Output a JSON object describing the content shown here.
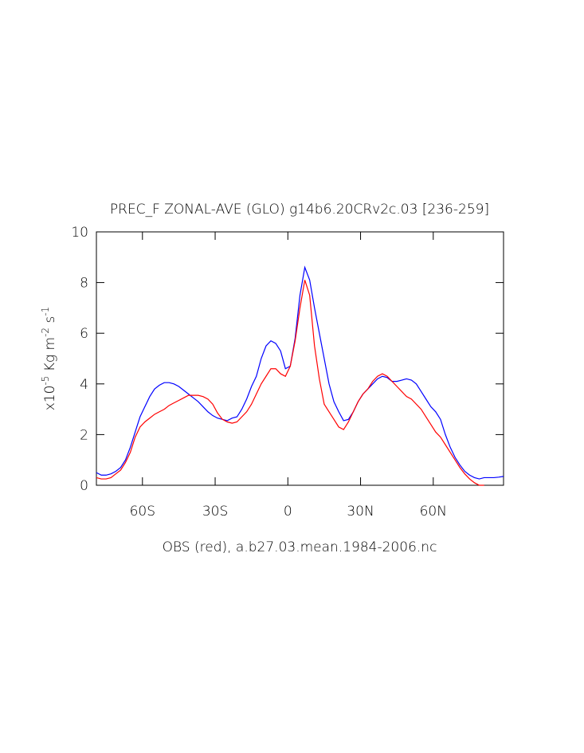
{
  "chart_data": {
    "type": "line",
    "title": "PREC_F ZONAL-AVE (GLO) g14b6.20CRv2c.03 [236-259]",
    "xlabel": "OBS (red), a.b27.03.mean.1984-2006.nc",
    "ylabel": [
      {
        "text": "x10"
      },
      {
        "text": "-5",
        "sup": true
      },
      {
        "text": " Kg m"
      },
      {
        "text": "-2",
        "sup": true
      },
      {
        "text": " s"
      },
      {
        "text": "-1",
        "sup": true
      }
    ],
    "xlim": [
      -79,
      89
    ],
    "ylim": [
      0,
      10
    ],
    "xticks": [
      {
        "value": -60,
        "label": "60S"
      },
      {
        "value": -30,
        "label": "30S"
      },
      0,
      {
        "value": 30,
        "label": "30N"
      },
      {
        "value": 60,
        "label": "60N"
      }
    ],
    "yticks": [
      0,
      2,
      4,
      6,
      8,
      10
    ],
    "x": [
      -79,
      -77,
      -75,
      -73,
      -71,
      -69,
      -67,
      -65,
      -63,
      -61,
      -59,
      -57,
      -55,
      -53,
      -51,
      -49,
      -47,
      -45,
      -43,
      -41,
      -39,
      -37,
      -35,
      -33,
      -31,
      -29,
      -27,
      -25,
      -23,
      -21,
      -19,
      -17,
      -15,
      -13,
      -11,
      -9,
      -7,
      -5,
      -3,
      -1,
      1,
      3,
      5,
      7,
      9,
      11,
      13,
      15,
      17,
      19,
      21,
      23,
      25,
      27,
      29,
      31,
      33,
      35,
      37,
      39,
      41,
      43,
      45,
      47,
      49,
      51,
      53,
      55,
      57,
      59,
      61,
      63,
      65,
      67,
      69,
      71,
      73,
      75,
      77,
      79,
      81,
      83,
      85,
      87,
      89
    ],
    "series": [
      {
        "color": "#0000ff",
        "values": [
          0.5,
          0.4,
          0.4,
          0.45,
          0.55,
          0.7,
          1.0,
          1.5,
          2.1,
          2.7,
          3.1,
          3.5,
          3.8,
          3.95,
          4.05,
          4.05,
          4.0,
          3.9,
          3.75,
          3.6,
          3.45,
          3.3,
          3.1,
          2.9,
          2.75,
          2.65,
          2.6,
          2.55,
          2.65,
          2.7,
          3.0,
          3.4,
          3.9,
          4.3,
          5.0,
          5.5,
          5.7,
          5.6,
          5.3,
          4.6,
          4.7,
          5.8,
          7.5,
          8.6,
          8.1,
          7.0,
          6.0,
          5.0,
          4.0,
          3.3,
          2.9,
          2.55,
          2.6,
          2.9,
          3.3,
          3.6,
          3.8,
          4.0,
          4.2,
          4.3,
          4.25,
          4.1,
          4.1,
          4.15,
          4.2,
          4.15,
          4.0,
          3.7,
          3.4,
          3.1,
          2.9,
          2.6,
          2.0,
          1.5,
          1.1,
          0.8,
          0.55,
          0.4,
          0.3,
          0.25,
          0.3,
          0.3,
          0.3,
          0.32,
          0.35
        ]
      },
      {
        "color": "#ff0000",
        "values": [
          0.3,
          0.25,
          0.25,
          0.3,
          0.45,
          0.6,
          0.9,
          1.3,
          1.9,
          2.3,
          2.5,
          2.65,
          2.8,
          2.9,
          3.0,
          3.15,
          3.25,
          3.35,
          3.45,
          3.55,
          3.55,
          3.55,
          3.5,
          3.4,
          3.2,
          2.85,
          2.6,
          2.5,
          2.45,
          2.5,
          2.7,
          2.9,
          3.2,
          3.6,
          4.0,
          4.3,
          4.6,
          4.6,
          4.4,
          4.3,
          4.7,
          5.7,
          7.0,
          8.1,
          7.5,
          5.5,
          4.2,
          3.2,
          2.9,
          2.6,
          2.3,
          2.2,
          2.5,
          2.9,
          3.3,
          3.6,
          3.8,
          4.1,
          4.3,
          4.4,
          4.3,
          4.1,
          3.9,
          3.7,
          3.5,
          3.4,
          3.2,
          3.0,
          2.7,
          2.4,
          2.1,
          1.9,
          1.6,
          1.3,
          1.0,
          0.7,
          0.45,
          0.25,
          0.1,
          0.0,
          0.0,
          null,
          null,
          null,
          null
        ]
      }
    ]
  }
}
